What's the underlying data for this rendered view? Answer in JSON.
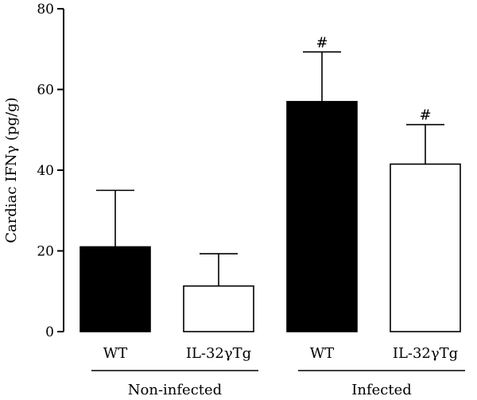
{
  "chart_data": {
    "type": "bar",
    "ylabel": "Cardiac IFNγ (pg/g)",
    "xlabel": "",
    "ylim": [
      0,
      80
    ],
    "yticks": [
      0,
      20,
      40,
      60,
      80
    ],
    "grid": false,
    "bars": [
      {
        "group": "Non-infected",
        "category": "WT",
        "value": 21,
        "error": 14,
        "fill": "black",
        "annotation": ""
      },
      {
        "group": "Non-infected",
        "category": "IL-32γTg",
        "value": 11.3,
        "error": 8,
        "fill": "white",
        "annotation": ""
      },
      {
        "group": "Infected",
        "category": "WT",
        "value": 57,
        "error": 12.3,
        "fill": "black",
        "annotation": "#"
      },
      {
        "group": "Infected",
        "category": "IL-32γTg",
        "value": 41.5,
        "error": 9.8,
        "fill": "white",
        "annotation": "#"
      }
    ],
    "groups": [
      "Non-infected",
      "Infected"
    ]
  },
  "colors": {
    "black_bar": "#000000",
    "white_bar": "#ffffff",
    "axis": "#000000"
  }
}
